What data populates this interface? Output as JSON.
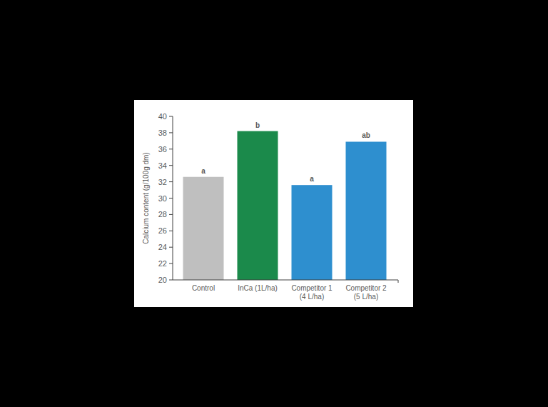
{
  "chart_data": {
    "type": "bar",
    "y_label": "Calcium content (g/100g dm)",
    "categories": [
      "Control",
      "InCa (1L/ha)",
      "Competitor 1\n(4 L/ha)",
      "Competitor 2\n(5 L/ha)"
    ],
    "values": [
      32.6,
      38.2,
      31.6,
      36.9
    ],
    "annotations": [
      "a",
      "b",
      "a",
      "ab"
    ],
    "colors": [
      "#bfbfbf",
      "#1b8a4b",
      "#2e8fcf",
      "#2e8fcf"
    ],
    "ylim": [
      20,
      40
    ],
    "yticks": [
      20,
      22,
      24,
      26,
      28,
      30,
      32,
      34,
      36,
      38,
      40
    ],
    "grid": false
  }
}
